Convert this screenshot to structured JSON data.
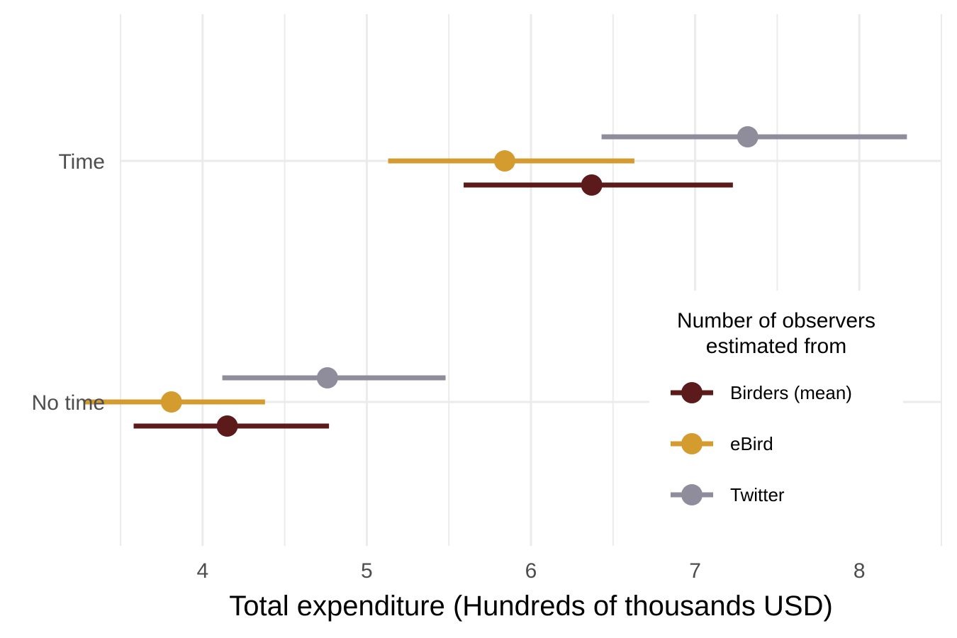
{
  "chart_data": {
    "type": "dot-interval",
    "xlabel": "Total expenditure (Hundreds of thousands USD)",
    "ylabel": "",
    "xlim": [
      3.5,
      8.5
    ],
    "x_ticks": [
      "4",
      "5",
      "6",
      "7",
      "8"
    ],
    "categories": [
      "Time",
      "No time"
    ],
    "grid": true,
    "legend": {
      "title_lines": [
        "Number of observers",
        "estimated from"
      ],
      "placement": "inside-right",
      "entries": [
        "Birders (mean)",
        "eBird",
        "Twitter"
      ]
    },
    "series": [
      {
        "name": "Birders (mean)",
        "color": "#5c1a1a",
        "points": [
          {
            "category": "Time",
            "estimate": 6.37,
            "low": 5.59,
            "high": 7.23
          },
          {
            "category": "No time",
            "estimate": 4.15,
            "low": 3.58,
            "high": 4.77
          }
        ]
      },
      {
        "name": "eBird",
        "color": "#d49b2f",
        "points": [
          {
            "category": "Time",
            "estimate": 5.84,
            "low": 5.13,
            "high": 6.63
          },
          {
            "category": "No time",
            "estimate": 3.81,
            "low": 3.28,
            "high": 4.38
          }
        ]
      },
      {
        "name": "Twitter",
        "color": "#8f8d9b",
        "points": [
          {
            "category": "Time",
            "estimate": 7.32,
            "low": 6.43,
            "high": 8.29
          },
          {
            "category": "No time",
            "estimate": 4.76,
            "low": 4.12,
            "high": 5.48
          }
        ]
      }
    ]
  }
}
